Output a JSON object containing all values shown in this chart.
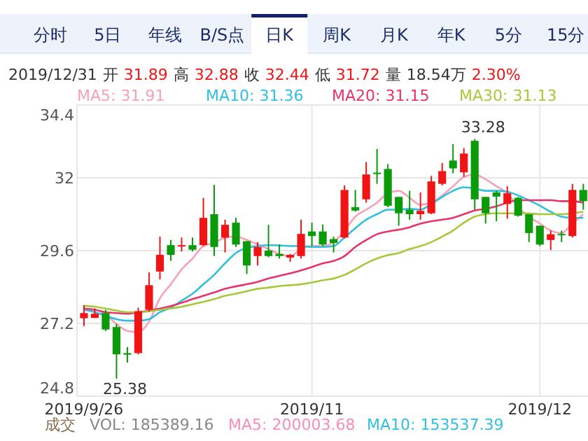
{
  "chart_data": {
    "type": "candlestick",
    "categories": [
      "2019/9/26",
      null,
      null,
      null,
      null,
      null,
      null,
      null,
      null,
      null,
      null,
      null,
      null,
      null,
      null,
      null,
      null,
      null,
      null,
      null,
      null,
      "2019/11",
      null,
      null,
      null,
      null,
      null,
      null,
      null,
      null,
      null,
      null,
      null,
      null,
      null,
      null,
      null,
      null,
      null,
      null,
      null,
      null,
      "2019/12",
      null,
      null,
      null,
      null
    ],
    "ohlc": [
      [
        27.37,
        27.8,
        27.11,
        27.54
      ],
      [
        27.38,
        27.69,
        27.38,
        27.52
      ],
      [
        27.54,
        27.65,
        26.95,
        27.0
      ],
      [
        27.08,
        27.18,
        25.38,
        26.18
      ],
      [
        26.22,
        26.42,
        25.91,
        26.17
      ],
      [
        26.22,
        27.72,
        26.18,
        27.6
      ],
      [
        27.65,
        28.88,
        27.6,
        28.46
      ],
      [
        28.91,
        30.06,
        28.65,
        29.46
      ],
      [
        29.78,
        29.95,
        29.26,
        29.46
      ],
      [
        29.77,
        30.03,
        29.57,
        29.78
      ],
      [
        29.78,
        30.03,
        29.57,
        29.63
      ],
      [
        29.78,
        31.34,
        29.75,
        30.68
      ],
      [
        30.8,
        31.77,
        29.42,
        29.72
      ],
      [
        30.03,
        30.62,
        29.54,
        30.45
      ],
      [
        30.52,
        30.68,
        29.72,
        29.8
      ],
      [
        29.91,
        29.91,
        28.83,
        29.11
      ],
      [
        29.42,
        29.88,
        29.11,
        29.72
      ],
      [
        29.6,
        30.45,
        29.38,
        29.42
      ],
      [
        29.49,
        29.8,
        29.34,
        29.42
      ],
      [
        29.37,
        29.49,
        29.23,
        29.46
      ],
      [
        29.42,
        30.62,
        29.34,
        30.15
      ],
      [
        30.23,
        30.52,
        29.75,
        30.08
      ],
      [
        30.23,
        30.46,
        29.75,
        29.8
      ],
      [
        29.98,
        30.06,
        29.54,
        29.85
      ],
      [
        30.03,
        31.75,
        30.0,
        31.6
      ],
      [
        31.03,
        31.6,
        30.88,
        30.92
      ],
      [
        31.29,
        32.52,
        31.18,
        32.11
      ],
      [
        32.17,
        32.95,
        31.8,
        32.13
      ],
      [
        32.29,
        32.45,
        31.03,
        31.08
      ],
      [
        31.37,
        31.37,
        30.42,
        30.83
      ],
      [
        30.95,
        31.57,
        30.62,
        30.8
      ],
      [
        30.8,
        31.52,
        30.62,
        30.91
      ],
      [
        30.83,
        32.06,
        30.8,
        31.88
      ],
      [
        31.8,
        32.49,
        31.75,
        32.22
      ],
      [
        32.57,
        33.11,
        32.15,
        32.31
      ],
      [
        32.18,
        32.98,
        32.03,
        32.8
      ],
      [
        33.22,
        33.28,
        30.95,
        31.29
      ],
      [
        31.37,
        31.37,
        30.49,
        30.83
      ],
      [
        31.52,
        31.57,
        30.57,
        31.38
      ],
      [
        31.14,
        31.72,
        30.65,
        31.49
      ],
      [
        31.34,
        31.37,
        30.72,
        30.75
      ],
      [
        30.8,
        30.8,
        29.88,
        30.18
      ],
      [
        30.42,
        30.42,
        29.75,
        29.8
      ],
      [
        29.95,
        30.26,
        29.62,
        30.14
      ],
      [
        30.15,
        30.26,
        29.88,
        30.12
      ],
      [
        30.08,
        31.8,
        30.03,
        31.6
      ],
      [
        31.6,
        31.8,
        30.95,
        31.23
      ]
    ],
    "series": [
      {
        "type": "line",
        "name": "MA5: 31.91",
        "color": "#f7a1b9",
        "values": [
          27.65,
          27.65,
          27.49,
          27.18,
          26.95,
          26.91,
          27.26,
          28.03,
          28.49,
          28.98,
          29.34,
          29.75,
          29.85,
          30.03,
          30.06,
          29.95,
          29.8,
          29.65,
          29.49,
          29.42,
          29.65,
          29.75,
          29.75,
          29.88,
          30.26,
          30.72,
          30.95,
          31.18,
          31.49,
          31.57,
          31.34,
          31.11,
          31.18,
          31.42,
          31.72,
          32.03,
          32.11,
          31.95,
          31.72,
          31.49,
          31.03,
          30.72,
          30.49,
          30.26,
          30.18,
          30.49,
          30.8
        ]
      },
      {
        "type": "line",
        "name": "MA10: 31.36",
        "color": "#2fbfe0",
        "values": [
          27.65,
          27.57,
          27.45,
          27.34,
          27.29,
          27.29,
          27.34,
          27.57,
          27.72,
          27.95,
          28.18,
          28.49,
          28.8,
          29.18,
          29.52,
          29.69,
          29.75,
          29.78,
          29.77,
          29.75,
          29.75,
          29.72,
          29.72,
          29.75,
          30.03,
          30.34,
          30.62,
          30.8,
          30.95,
          30.95,
          30.98,
          30.95,
          31.14,
          31.37,
          31.57,
          31.69,
          31.65,
          31.57,
          31.57,
          31.54,
          31.42,
          31.26,
          31.08,
          30.88,
          30.72,
          30.68,
          30.68
        ]
      },
      {
        "type": "line",
        "name": "MA20: 31.15",
        "color": "#e8336b",
        "values": [
          27.69,
          27.65,
          27.57,
          27.54,
          27.52,
          27.57,
          27.62,
          27.69,
          27.77,
          27.88,
          28.0,
          28.11,
          28.22,
          28.34,
          28.42,
          28.49,
          28.57,
          28.68,
          28.77,
          28.85,
          28.95,
          29.06,
          29.18,
          29.26,
          29.42,
          29.72,
          29.95,
          30.14,
          30.23,
          30.29,
          30.37,
          30.49,
          30.57,
          30.62,
          30.68,
          30.8,
          30.92,
          30.98,
          31.06,
          31.18,
          31.26,
          31.26,
          31.26,
          31.26,
          31.23,
          31.23,
          31.18
        ]
      },
      {
        "type": "line",
        "name": "MA30: 31.13",
        "color": "#a6c83a",
        "values": [
          27.78,
          27.75,
          27.69,
          27.62,
          27.57,
          27.57,
          27.6,
          27.65,
          27.69,
          27.75,
          27.83,
          27.91,
          28.0,
          28.11,
          28.18,
          28.26,
          28.34,
          28.38,
          28.43,
          28.46,
          28.49,
          28.55,
          28.62,
          28.68,
          28.8,
          28.98,
          29.18,
          29.34,
          29.45,
          29.52,
          29.65,
          29.75,
          29.88,
          30.06,
          30.26,
          30.52,
          30.72,
          30.8,
          30.83,
          30.83,
          30.83,
          30.83,
          30.8,
          30.8,
          30.8,
          30.83,
          30.88
        ]
      }
    ],
    "ylim": [
      24.8,
      34.4
    ],
    "yticks": [
      24.8,
      27.2,
      29.6,
      32,
      34.4
    ],
    "grid": true,
    "legend": "top",
    "annotations": [
      "分时",
      "5日",
      "年线",
      "B/S点",
      "日K",
      "周K",
      "月K",
      "年K",
      "5分",
      "15分",
      "2019/12/31",
      "开",
      "31.89",
      "高",
      "32.88",
      "收",
      "32.44",
      "低",
      "31.72",
      "量",
      "18.54万",
      "2.30%",
      "成交",
      "VOL: 185389.16",
      "MA5: 200003.68",
      "MA10: 153537.39",
      "25.38",
      "33.28"
    ]
  }
}
